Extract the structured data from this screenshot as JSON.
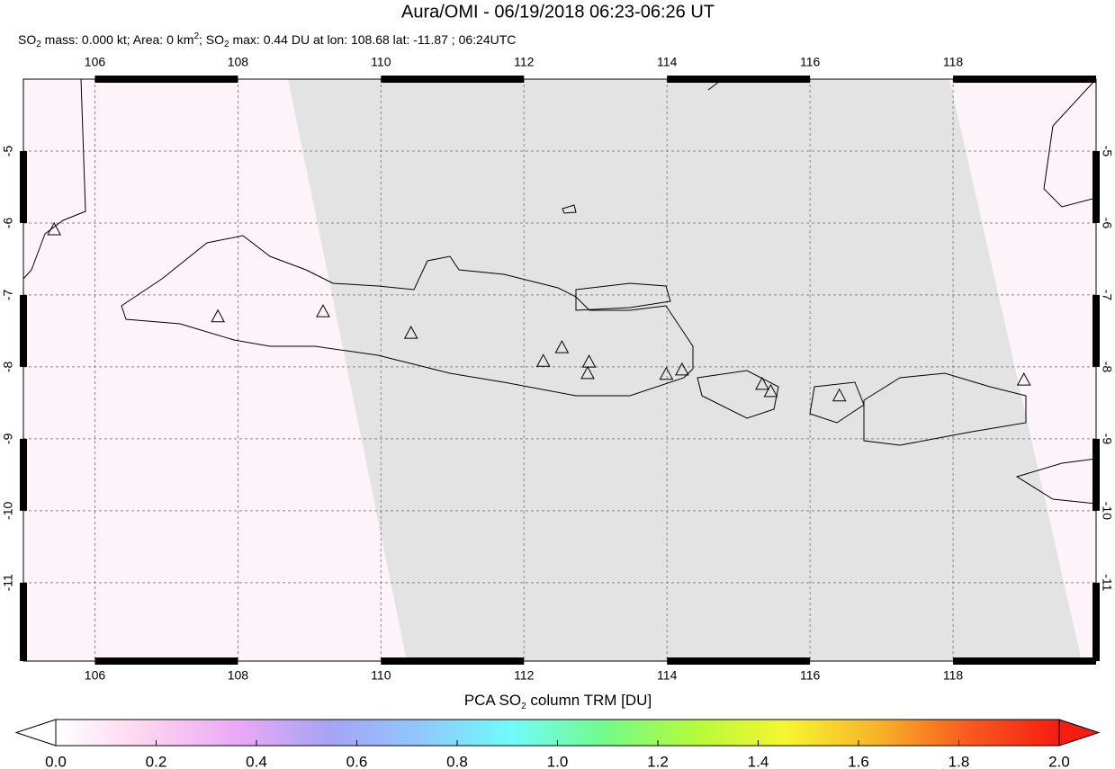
{
  "chart_data": {
    "type": "map",
    "title": "Aura/OMI - 06/19/2018 06:23-06:26 UT",
    "subtitle": [
      "SO",
      "2",
      " mass: 0.000 kt; Area: 0 km",
      "2",
      "; SO",
      "2",
      " max: 0.44 DU at lon: 108.68 lat: -11.87 ; 06:24UTC"
    ],
    "xlim": [
      105,
      120
    ],
    "ylim": [
      -12.09,
      -4
    ],
    "xticks": [
      106,
      108,
      110,
      112,
      114,
      116,
      118
    ],
    "yticks": [
      -5,
      -6,
      -7,
      -8,
      -9,
      -10,
      -11
    ],
    "grid": true,
    "volcanoes": {
      "lon": [
        105.43,
        107.72,
        109.19,
        110.42,
        112.27,
        112.53,
        112.91,
        112.89,
        113.99,
        114.21,
        115.33,
        115.45,
        116.41,
        118.99
      ],
      "lat": [
        -6.1,
        -7.31,
        -7.24,
        -7.54,
        -7.93,
        -7.74,
        -7.94,
        -8.1,
        -8.11,
        -8.05,
        -8.25,
        -8.35,
        -8.41,
        -8.19
      ]
    },
    "colorbar": {
      "label": [
        "PCA SO",
        "2",
        " column TRM [DU]"
      ],
      "lim": [
        0,
        2
      ],
      "ticks": [
        {
          "value": 0,
          "label": "0.0"
        },
        0.2,
        0.4,
        0.6,
        0.8,
        {
          "value": 1,
          "label": "1.0"
        },
        1.2,
        1.4,
        1.6,
        1.8,
        {
          "value": 2,
          "label": "2.0"
        }
      ],
      "colors": [
        "#ffffff",
        "#fdd3f0",
        "#e9a9f5",
        "#a6a3f5",
        "#8fc8ff",
        "#71fbfa",
        "#72fb8a",
        "#b4fb3c",
        "#f7f531",
        "#f7b42a",
        "#f85a1f",
        "#f51d10"
      ]
    }
  }
}
